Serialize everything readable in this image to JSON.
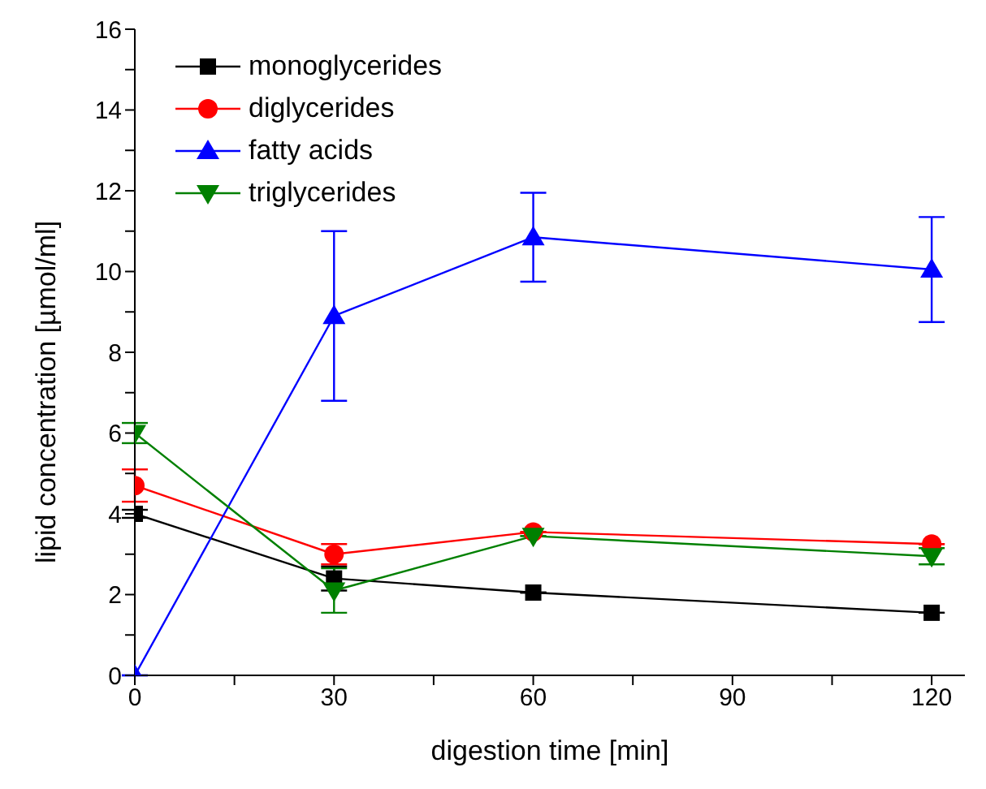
{
  "chart_data": {
    "type": "line",
    "xlabel": "digestion time [min]",
    "ylabel": "lipid concentration [µmol/ml]",
    "x": [
      0,
      30,
      60,
      120
    ],
    "series": [
      {
        "name": "monoglycerides",
        "color": "#000000",
        "marker": "square",
        "values": [
          4.0,
          2.4,
          2.05,
          1.55
        ],
        "errors": [
          0.1,
          0.3,
          null,
          null
        ]
      },
      {
        "name": "diglycerides",
        "color": "#ff0000",
        "marker": "circle",
        "values": [
          4.7,
          3.0,
          3.55,
          3.25
        ],
        "errors": [
          0.4,
          0.25,
          null,
          null
        ]
      },
      {
        "name": "fatty acids",
        "color": "#0000ff",
        "marker": "triangle",
        "values": [
          0,
          8.9,
          10.85,
          10.05
        ],
        "errors": [
          null,
          2.1,
          1.1,
          1.3
        ]
      },
      {
        "name": "triglycerides",
        "color": "#008000",
        "marker": "triangle-down",
        "values": [
          6.0,
          2.1,
          3.45,
          2.95
        ],
        "errors": [
          0.25,
          0.55,
          null,
          0.2
        ]
      }
    ],
    "xlim": [
      0,
      125
    ],
    "xticks": [
      0,
      {
        "value": 15,
        "label": null
      },
      30,
      {
        "value": 45,
        "label": null
      },
      60,
      {
        "value": 75,
        "label": null
      },
      90,
      {
        "value": 105,
        "label": null
      },
      120
    ],
    "ylim": [
      0,
      16
    ],
    "yticks": [
      0,
      {
        "value": 1,
        "label": null
      },
      2,
      {
        "value": 3,
        "label": null
      },
      4,
      {
        "value": 5,
        "label": null
      },
      6,
      {
        "value": 7,
        "label": null
      },
      8,
      {
        "value": 9,
        "label": null
      },
      10,
      {
        "value": 11,
        "label": null
      },
      12,
      {
        "value": 13,
        "label": null
      },
      14,
      {
        "value": 15,
        "label": null
      },
      16
    ],
    "grid": false,
    "legend": "top left"
  }
}
